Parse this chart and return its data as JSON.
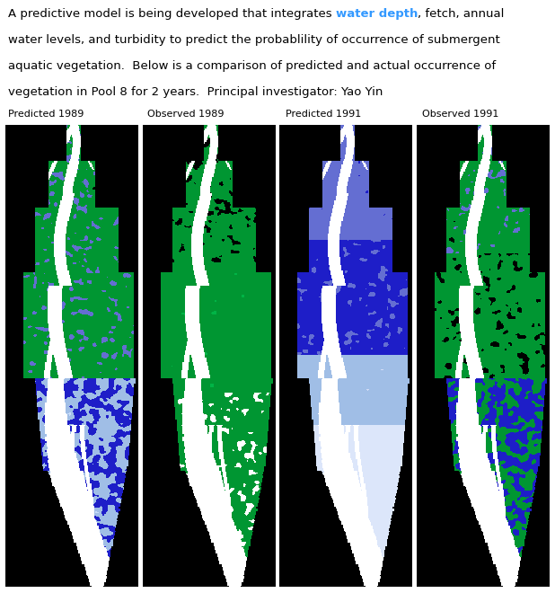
{
  "title_line1_pre": "A predictive model is being developed that integrates ",
  "title_highlight": "water depth",
  "title_line1_post": ", fetch, annual",
  "title_line2": "water levels, and turbidity to predict the probablility of occurrence of submergent",
  "title_line3": "aquatic vegetation.  Below is a comparison of predicted and actual occurrence of",
  "title_line4": "vegetation in Pool 8 for 2 years.  Principal investigator: Yao Yin",
  "highlight_color": "#3399FF",
  "text_color": "#000000",
  "background_color": "#ffffff",
  "map_background": "#000000",
  "panel_labels": [
    "Predicted 1989",
    "Observed 1989",
    "Predicted 1991",
    "Observed 1991"
  ],
  "label_fontsize": 8,
  "text_fontsize": 9.5,
  "fig_width": 6.18,
  "fig_height": 6.6,
  "dpi": 100,
  "blue": [
    30,
    30,
    200
  ],
  "light_blue": [
    160,
    190,
    230
  ],
  "green": [
    0,
    150,
    50
  ],
  "white": [
    255,
    255,
    255
  ],
  "black": [
    0,
    0,
    0
  ],
  "periwinkle": [
    100,
    110,
    210
  ]
}
